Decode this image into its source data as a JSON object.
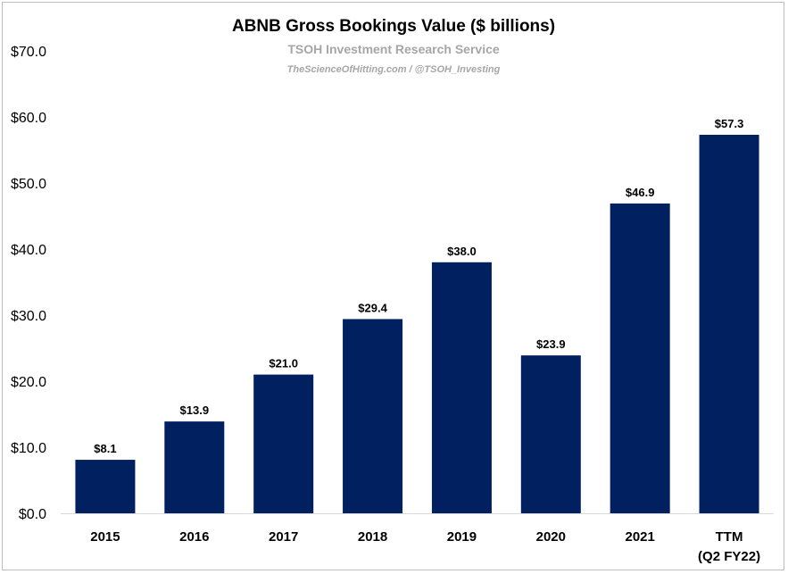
{
  "chart_data": {
    "type": "bar",
    "title": "ABNB Gross Bookings Value ($ billions)",
    "subtitle": "TSOH Investment Research Service",
    "subtitle2": "TheScienceOfHitting.com / @TSOH_Investing",
    "categories": [
      [
        "2015"
      ],
      [
        "2016"
      ],
      [
        "2017"
      ],
      [
        "2018"
      ],
      [
        "2019"
      ],
      [
        "2020"
      ],
      [
        "2021"
      ],
      [
        "TTM",
        "(Q2 FY22)"
      ]
    ],
    "values": [
      8.1,
      13.9,
      21.0,
      29.4,
      38.0,
      23.9,
      46.9,
      57.3
    ],
    "data_labels": [
      "$8.1",
      "$13.9",
      "$21.0",
      "$29.4",
      "$38.0",
      "$23.9",
      "$46.9",
      "$57.3"
    ],
    "y_ticks": [
      0,
      10,
      20,
      30,
      40,
      50,
      60,
      70
    ],
    "y_tick_labels": [
      "$0.0",
      "$10.0",
      "$20.0",
      "$30.0",
      "$40.0",
      "$50.0",
      "$60.0",
      "$70.0"
    ],
    "ylim": [
      0,
      70
    ],
    "grid": false,
    "legend": "none",
    "bar_color": "#002060",
    "axis_color": "#d9d9d9"
  }
}
